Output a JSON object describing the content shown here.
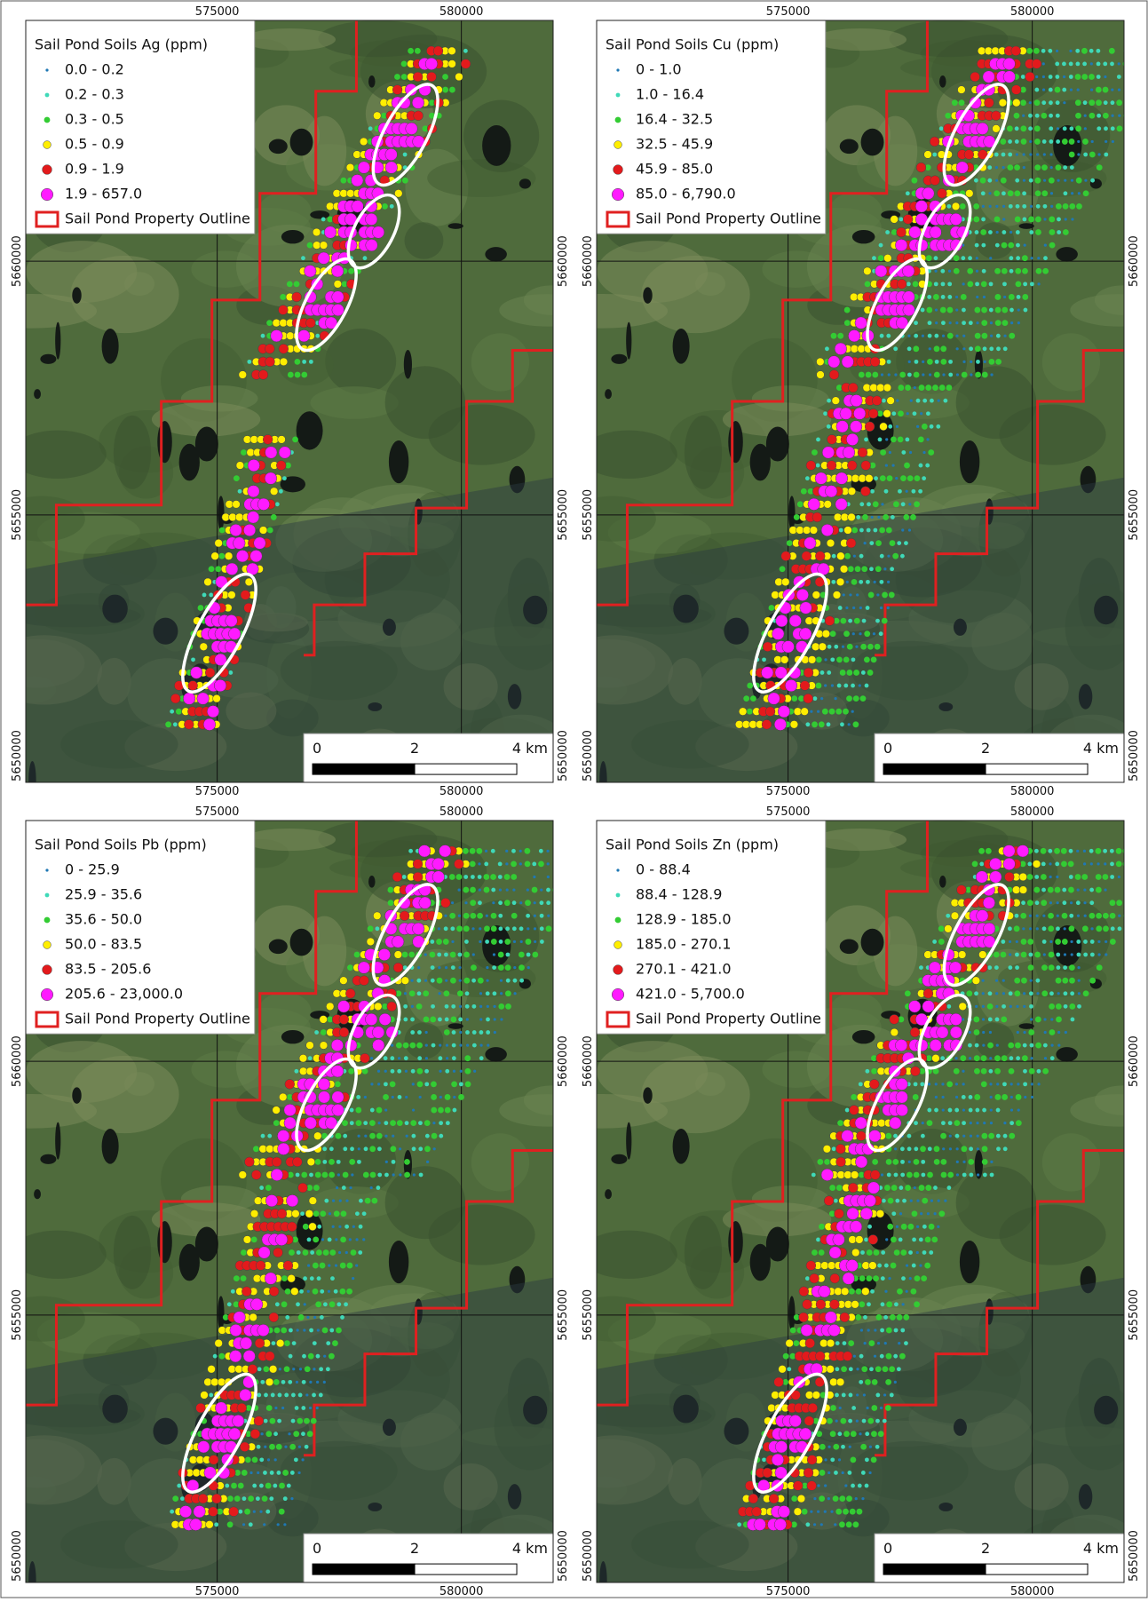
{
  "panels": [
    {
      "legend_title": "Sail Pond Soils Ag (ppm)",
      "classes": [
        "0.0 - 0.2",
        "0.2 - 0.3",
        "0.3 - 0.5",
        "0.5 - 0.9",
        "0.9 - 1.9",
        "1.9 - 657.0"
      ],
      "outline_label": "Sail Pond Property Outline",
      "x_labels": [
        "575000",
        "580000"
      ],
      "y_labels": [
        "5660000",
        "5655000",
        "5650000"
      ],
      "scale_labels": [
        "0",
        "2",
        "4 km"
      ]
    },
    {
      "legend_title": "Sail Pond Soils Cu (ppm)",
      "classes": [
        "0 - 1.0",
        "1.0 - 16.4",
        "16.4 - 32.5",
        "32.5 - 45.9",
        "45.9 - 85.0",
        "85.0 - 6,790.0"
      ],
      "outline_label": "Sail Pond Property Outline",
      "x_labels": [
        "575000",
        "580000"
      ],
      "y_labels": [
        "5660000",
        "5655000",
        "5650000"
      ],
      "scale_labels": [
        "0",
        "2",
        "4 km"
      ]
    },
    {
      "legend_title": "Sail Pond Soils Pb (ppm)",
      "classes": [
        "0 - 25.9",
        "25.9 - 35.6",
        "35.6 - 50.0",
        "50.0 - 83.5",
        "83.5 - 205.6",
        "205.6 - 23,000.0"
      ],
      "outline_label": "Sail Pond Property Outline",
      "x_labels": [
        "575000",
        "580000"
      ],
      "y_labels": [
        "5660000",
        "5655000",
        "5650000"
      ],
      "scale_labels": [
        "0",
        "2",
        "4 km"
      ]
    },
    {
      "legend_title": "Sail Pond Soils Zn (ppm)",
      "classes": [
        "0 - 88.4",
        "88.4 - 128.9",
        "128.9 - 185.0",
        "185.0 - 270.1",
        "270.1 - 421.0",
        "421.0 - 5,700.0"
      ],
      "outline_label": "Sail Pond Property Outline",
      "x_labels": [
        "575000",
        "580000"
      ],
      "y_labels": [
        "5660000",
        "5655000",
        "5650000"
      ],
      "scale_labels": [
        "0",
        "2",
        "4 km"
      ]
    }
  ],
  "class_colors": [
    "#1f78b4",
    "#3fd9b8",
    "#33cc33",
    "#ffee00",
    "#e31a1c",
    "#ff1aff"
  ],
  "outline_color": "#e02020"
}
